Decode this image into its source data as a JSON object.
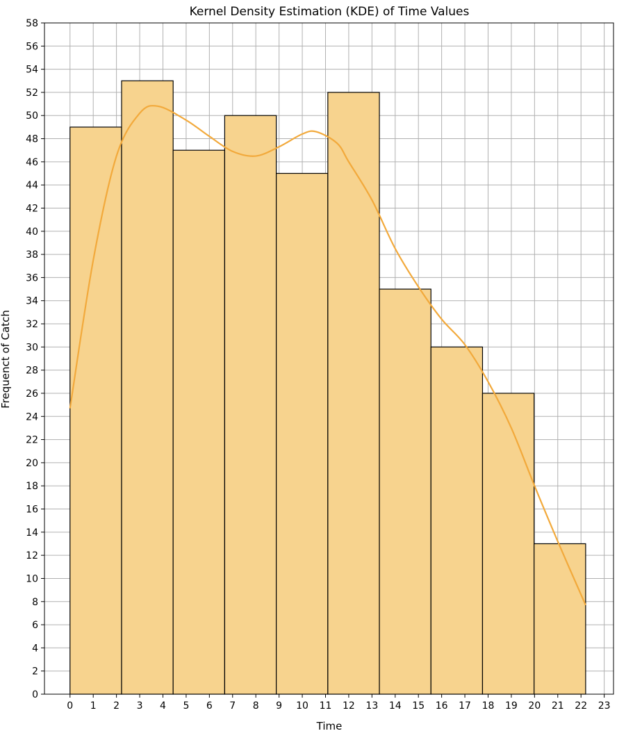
{
  "chart_data": {
    "type": "bar",
    "title": "Kernel Density Estimation (KDE) of Time Values",
    "xlabel": "Time",
    "ylabel": "Frequenct of Catch",
    "xlim": [
      -1.1,
      23.4
    ],
    "ylim": [
      0,
      58
    ],
    "xticks": [
      0,
      1,
      2,
      3,
      4,
      5,
      6,
      7,
      8,
      9,
      10,
      11,
      12,
      13,
      14,
      15,
      16,
      17,
      18,
      19,
      20,
      21,
      22,
      23
    ],
    "yticks": [
      0,
      2,
      4,
      6,
      8,
      10,
      12,
      14,
      16,
      18,
      20,
      22,
      24,
      26,
      28,
      30,
      32,
      34,
      36,
      38,
      40,
      42,
      44,
      46,
      48,
      50,
      52,
      54,
      56,
      58
    ],
    "grid": true,
    "bin_edges": [
      0,
      2.22,
      4.44,
      6.66,
      8.88,
      11.1,
      13.32,
      15.54,
      17.76,
      19.98,
      22.2
    ],
    "values": [
      49,
      53,
      47,
      50,
      45,
      52,
      35,
      30,
      26,
      13
    ],
    "kde_curve": {
      "x": [
        0,
        1,
        2,
        3,
        3.8,
        5,
        6,
        7,
        8,
        9,
        10,
        10.6,
        11.5,
        12,
        13,
        14,
        15,
        16,
        17,
        18,
        19,
        20,
        21,
        22.2
      ],
      "y": [
        24.7,
        37.5,
        46.5,
        50.2,
        50.8,
        49.6,
        48.2,
        46.9,
        46.5,
        47.3,
        48.4,
        48.6,
        47.6,
        46.0,
        42.7,
        38.5,
        35.2,
        32.4,
        30.2,
        27.0,
        23.0,
        18.0,
        13.2,
        7.7
      ]
    },
    "colors": {
      "bar_fill": "#f7d38e",
      "bar_edge": "#000000",
      "kde_line": "#f2a93b",
      "grid": "#b0b0b0"
    }
  }
}
